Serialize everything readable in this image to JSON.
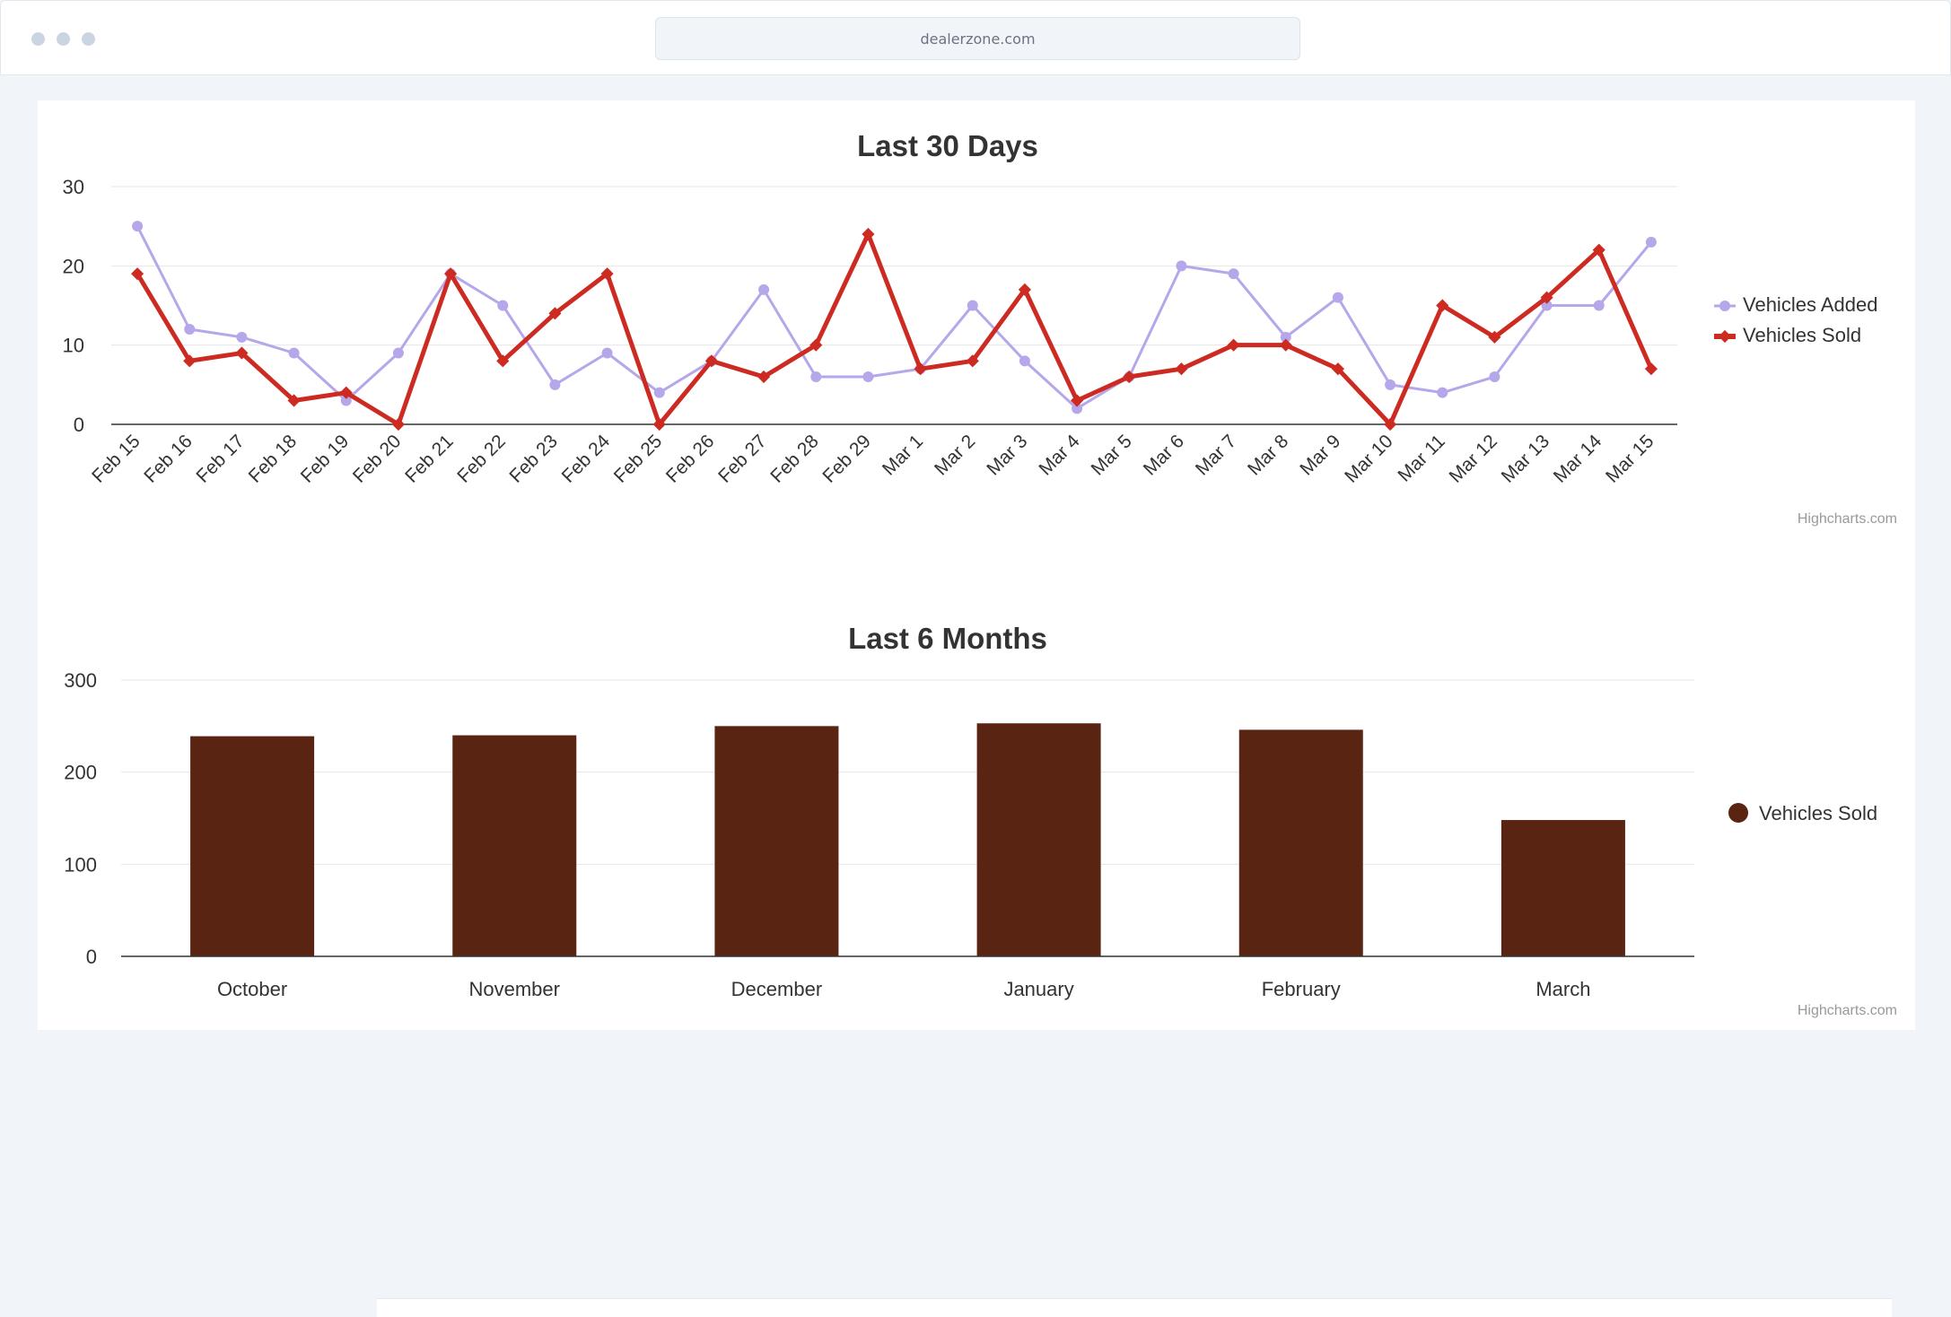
{
  "browser": {
    "url": "dealerzone.com"
  },
  "credits": "Highcharts.com",
  "colors": {
    "added": "#b6a6ea",
    "sold_line": "#cd2a22",
    "sold_bar": "#5a2413"
  },
  "chart_data": [
    {
      "type": "line",
      "title": "Last 30 Days",
      "categories": [
        "Feb 15",
        "Feb 16",
        "Feb 17",
        "Feb 18",
        "Feb 19",
        "Feb 20",
        "Feb 21",
        "Feb 22",
        "Feb 23",
        "Feb 24",
        "Feb 25",
        "Feb 26",
        "Feb 27",
        "Feb 28",
        "Feb 29",
        "Mar 1",
        "Mar 2",
        "Mar 3",
        "Mar 4",
        "Mar 5",
        "Mar 6",
        "Mar 7",
        "Mar 8",
        "Mar 9",
        "Mar 10",
        "Mar 11",
        "Mar 12",
        "Mar 13",
        "Mar 14",
        "Mar 15"
      ],
      "series": [
        {
          "name": "Vehicles Added",
          "values": [
            25,
            12,
            11,
            9,
            3,
            9,
            19,
            15,
            5,
            9,
            4,
            8,
            17,
            6,
            6,
            7,
            15,
            8,
            2,
            6,
            20,
            19,
            11,
            16,
            5,
            4,
            6,
            15,
            15,
            23
          ]
        },
        {
          "name": "Vehicles Sold",
          "values": [
            19,
            8,
            9,
            3,
            4,
            0,
            19,
            8,
            14,
            19,
            0,
            8,
            6,
            10,
            24,
            7,
            8,
            17,
            3,
            6,
            7,
            10,
            10,
            7,
            0,
            15,
            11,
            16,
            22,
            7
          ]
        }
      ],
      "ylim": [
        0,
        30
      ],
      "yticks": [
        0,
        10,
        20,
        30
      ],
      "xlabel": "",
      "ylabel": "",
      "grid": true,
      "legend": "right"
    },
    {
      "type": "bar",
      "title": "Last 6 Months",
      "categories": [
        "October",
        "November",
        "December",
        "January",
        "February",
        "March"
      ],
      "series": [
        {
          "name": "Vehicles Sold",
          "values": [
            239,
            240,
            250,
            253,
            246,
            148
          ]
        }
      ],
      "ylim": [
        0,
        300
      ],
      "yticks": [
        0,
        100,
        200,
        300
      ],
      "xlabel": "",
      "ylabel": "",
      "grid": true,
      "legend": "right"
    }
  ]
}
